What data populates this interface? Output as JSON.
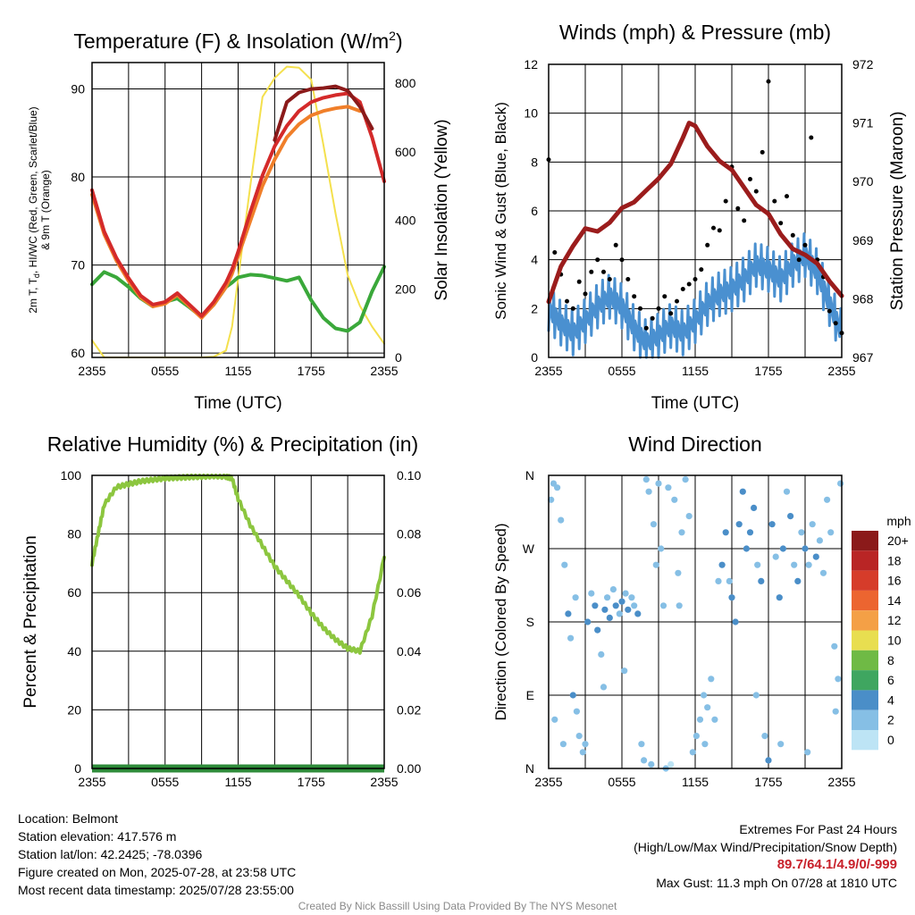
{
  "chart_data": [
    {
      "type": "line",
      "title": "Temperature (F) & Insolation (W/m²)",
      "title_main": "Temperature (F) & Insolation (W/m",
      "title_sup": "2",
      "title_end": ")",
      "xlabel": "Time (UTC)",
      "ylabel_left_lines": [
        "2m T, T",
        "d",
        ", HI/WC (Red, Green, Scarlet/Blue)",
        "& 9m T (Orange)"
      ],
      "ylabel_right": "Solar Insolation (Yellow)",
      "x_ticks": [
        "2355",
        "0555",
        "1155",
        "1755",
        "2355"
      ],
      "y_left_ticks": [
        "60",
        "70",
        "80",
        "90"
      ],
      "y_right_ticks": [
        "0",
        "200",
        "400",
        "600",
        "800"
      ],
      "ylim_left": [
        59.5,
        93
      ],
      "ylim_right": [
        0,
        860
      ],
      "x_hours": [
        0,
        1,
        2,
        3,
        4,
        5,
        6,
        7,
        8,
        9,
        10,
        11,
        11.5,
        12,
        13,
        14,
        15,
        16,
        17,
        18,
        19,
        20,
        21,
        22,
        23,
        24
      ],
      "series": [
        {
          "color": "#8b1a1a",
          "values": [
            null,
            null,
            null,
            null,
            null,
            null,
            null,
            null,
            null,
            null,
            null,
            null,
            null,
            null,
            null,
            null,
            84.2,
            88.5,
            89.6,
            90.0,
            90.1,
            90.3,
            89.8,
            88.0,
            85.5,
            null
          ]
        },
        {
          "color": "#d42a2a",
          "values": [
            78.5,
            73.8,
            70.8,
            68.5,
            66.5,
            65.5,
            65.8,
            66.8,
            65.5,
            64.2,
            65.8,
            68.0,
            69.5,
            71.5,
            76.0,
            80.2,
            83.5,
            85.8,
            87.5,
            88.5,
            89.0,
            89.3,
            89.5,
            88.5,
            84.5,
            79.5
          ]
        },
        {
          "color": "#f07f2a",
          "values": [
            78.0,
            73.5,
            70.5,
            68.2,
            66.3,
            65.3,
            65.6,
            66.6,
            65.3,
            64.0,
            65.5,
            67.5,
            69.0,
            71.0,
            75.0,
            79.0,
            82.0,
            84.5,
            86.0,
            87.0,
            87.5,
            87.8,
            88.0,
            87.5,
            null,
            null
          ]
        },
        {
          "color": "#3aa83a",
          "values": [
            67.8,
            69.2,
            68.6,
            67.5,
            66.2,
            65.3,
            65.8,
            66.2,
            65.2,
            64.1,
            65.5,
            67.5,
            68.0,
            68.6,
            68.9,
            68.8,
            68.5,
            68.2,
            68.6,
            66.0,
            64.0,
            62.8,
            62.5,
            63.5,
            67.0,
            69.8
          ]
        }
      ],
      "insolation": {
        "color": "#f4e04d",
        "values": [
          50,
          0,
          0,
          0,
          0,
          0,
          0,
          0,
          0,
          0,
          2,
          20,
          90,
          230,
          500,
          760,
          815,
          848,
          845,
          810,
          620,
          420,
          240,
          150,
          90,
          40
        ]
      }
    },
    {
      "type": "line",
      "title": "Winds (mph) & Pressure (mb)",
      "xlabel": "Time (UTC)",
      "ylabel_left": "Sonic Wind & Gust (Blue, Black)",
      "ylabel_right": "Station Pressure (Maroon)",
      "x_ticks": [
        "2355",
        "0555",
        "1155",
        "1755",
        "2355"
      ],
      "y_left_ticks": [
        "0",
        "2",
        "4",
        "6",
        "8",
        "10",
        "12"
      ],
      "y_right_ticks": [
        "967",
        "968",
        "969",
        "970",
        "971",
        "972"
      ],
      "ylim_left": [
        0,
        12
      ],
      "ylim_right": [
        967,
        972
      ],
      "wind": {
        "color": "#4a90d0",
        "x_hours": [
          0,
          1,
          2,
          3,
          4,
          5,
          6,
          7,
          8,
          9,
          10,
          11,
          12,
          13,
          14,
          15,
          16,
          17,
          18,
          19,
          20,
          21,
          22,
          23,
          24
        ],
        "values": [
          2.0,
          1.4,
          1.0,
          1.5,
          2.1,
          2.5,
          2.1,
          1.2,
          0.6,
          0.9,
          1.3,
          1.0,
          1.5,
          2.2,
          2.6,
          2.8,
          3.2,
          3.8,
          3.6,
          3.2,
          3.8,
          4.2,
          3.5,
          2.2,
          1.0
        ]
      },
      "gust": {
        "color": "#000000",
        "x_hours": [
          0,
          0.5,
          1,
          1.5,
          2,
          2.5,
          3,
          3.5,
          4,
          4.5,
          5,
          5.5,
          6,
          6.5,
          7,
          7.5,
          8,
          8.5,
          9,
          9.5,
          10,
          10.5,
          11,
          11.5,
          12,
          12.5,
          13,
          13.5,
          14,
          14.5,
          15,
          15.5,
          16,
          16.5,
          17,
          17.5,
          18,
          18.5,
          19,
          19.5,
          20,
          20.5,
          21,
          21.5,
          22,
          22.5,
          23,
          23.5,
          24
        ],
        "values": [
          8.1,
          4.3,
          3.4,
          2.3,
          2.0,
          3.1,
          2.6,
          3.5,
          4.0,
          3.5,
          3.2,
          4.6,
          4.0,
          3.2,
          2.5,
          2.0,
          1.2,
          1.6,
          2.0,
          2.5,
          1.8,
          2.3,
          2.8,
          3.0,
          3.2,
          3.6,
          4.6,
          5.3,
          5.2,
          6.4,
          7.8,
          6.1,
          5.6,
          7.3,
          6.8,
          8.4,
          11.3,
          6.4,
          5.5,
          6.6,
          5.0,
          4.0,
          4.6,
          9.0,
          4.0,
          3.3,
          1.9,
          1.4,
          1.0
        ]
      },
      "pressure": {
        "color": "#9b1c1c",
        "x_hours": [
          0,
          1,
          2,
          3,
          4,
          5,
          6,
          7,
          8,
          9,
          10,
          11,
          11.5,
          12,
          13,
          14,
          15,
          16,
          17,
          18,
          19,
          20,
          21,
          22,
          23,
          24
        ],
        "values": [
          967.95,
          968.55,
          968.9,
          969.2,
          969.15,
          969.3,
          969.55,
          969.65,
          969.85,
          970.05,
          970.3,
          970.75,
          971.0,
          970.95,
          970.6,
          970.35,
          970.2,
          969.9,
          969.6,
          969.45,
          969.1,
          968.85,
          968.75,
          968.6,
          968.3,
          968.05
        ]
      }
    },
    {
      "type": "line",
      "title": "Relative Humidity (%) & Precipitation (in)",
      "ylabel": "Percent & Precipitation",
      "x_ticks": [
        "2355",
        "0555",
        "1155",
        "1755",
        "2355"
      ],
      "y_left_ticks": [
        "0",
        "20",
        "40",
        "60",
        "80",
        "100"
      ],
      "y_right_ticks": [
        "0.00",
        "0.02",
        "0.04",
        "0.06",
        "0.08",
        "0.10"
      ],
      "ylim_left": [
        0,
        100
      ],
      "ylim_right": [
        0,
        0.1
      ],
      "rh": {
        "color": "#8cc63f",
        "x_hours": [
          0,
          0.5,
          1,
          2,
          3,
          4,
          5,
          6,
          7,
          8,
          9,
          10,
          11,
          11.5,
          12,
          13,
          14,
          15,
          16,
          17,
          18,
          19,
          20,
          21,
          22,
          23,
          24
        ],
        "values": [
          70,
          80,
          90,
          96,
          97,
          98,
          98.5,
          99,
          99.2,
          99.4,
          99.6,
          99.8,
          99.6,
          99.0,
          92,
          83,
          76,
          69,
          64,
          59,
          53,
          48,
          44,
          41,
          40,
          52,
          72
        ]
      },
      "precip": {
        "color": "#2e8b3a",
        "values": [
          0,
          0
        ]
      }
    },
    {
      "type": "scatter",
      "title": "Wind Direction",
      "ylabel": "Direction (Colored By Speed)",
      "x_ticks": [
        "2355",
        "0555",
        "1155",
        "1755",
        "2355"
      ],
      "y_ticks": [
        "N",
        "E",
        "S",
        "W",
        "N"
      ],
      "legend_title": "mph",
      "legend_labels": [
        "20+",
        "18",
        "16",
        "14",
        "12",
        "10",
        "8",
        "6",
        "4",
        "2",
        "0"
      ],
      "legend_colors": [
        "#8b1a1a",
        "#b92525",
        "#d63c2a",
        "#ec6530",
        "#f4a046",
        "#e8de50",
        "#6fba45",
        "#3fa660",
        "#4a8ec8",
        "#86bfe5",
        "#bde4f5"
      ],
      "points": [
        {
          "x": 0.2,
          "y": 330,
          "s": 1.5
        },
        {
          "x": 0.4,
          "y": 350,
          "s": 2
        },
        {
          "x": 0.7,
          "y": 345,
          "s": 1.2
        },
        {
          "x": 1.0,
          "y": 305,
          "s": 1.8
        },
        {
          "x": 1.3,
          "y": 250,
          "s": 2.5
        },
        {
          "x": 1.6,
          "y": 190,
          "s": 3
        },
        {
          "x": 1.8,
          "y": 160,
          "s": 2.6
        },
        {
          "x": 2.0,
          "y": 90,
          "s": 3.2
        },
        {
          "x": 2.3,
          "y": 70,
          "s": 2.4
        },
        {
          "x": 2.5,
          "y": 40,
          "s": 1.9
        },
        {
          "x": 2.8,
          "y": 20,
          "s": 2.8
        },
        {
          "x": 3.0,
          "y": 30,
          "s": 2.2
        },
        {
          "x": 3.2,
          "y": 180,
          "s": 3.4
        },
        {
          "x": 3.5,
          "y": 215,
          "s": 2.5
        },
        {
          "x": 3.8,
          "y": 200,
          "s": 3.8
        },
        {
          "x": 4.0,
          "y": 170,
          "s": 3.0
        },
        {
          "x": 4.3,
          "y": 140,
          "s": 2.4
        },
        {
          "x": 4.6,
          "y": 195,
          "s": 3.1
        },
        {
          "x": 4.8,
          "y": 210,
          "s": 2.2
        },
        {
          "x": 5.0,
          "y": 185,
          "s": 3.5
        },
        {
          "x": 5.3,
          "y": 220,
          "s": 2.6
        },
        {
          "x": 5.5,
          "y": 200,
          "s": 3.2
        },
        {
          "x": 5.8,
          "y": 190,
          "s": 2.0
        },
        {
          "x": 6.0,
          "y": 205,
          "s": 3.3
        },
        {
          "x": 6.3,
          "y": 215,
          "s": 2.7
        },
        {
          "x": 6.5,
          "y": 195,
          "s": 3.6
        },
        {
          "x": 6.8,
          "y": 210,
          "s": 2.9
        },
        {
          "x": 7.0,
          "y": 200,
          "s": 2.1
        },
        {
          "x": 7.3,
          "y": 190,
          "s": 3.0
        },
        {
          "x": 7.6,
          "y": 30,
          "s": 1.6
        },
        {
          "x": 7.8,
          "y": 10,
          "s": 1.2
        },
        {
          "x": 8.0,
          "y": 355,
          "s": 1.0
        },
        {
          "x": 8.2,
          "y": 340,
          "s": 1.4
        },
        {
          "x": 8.4,
          "y": 5,
          "s": 1.1
        },
        {
          "x": 8.6,
          "y": 300,
          "s": 1.3
        },
        {
          "x": 8.8,
          "y": 250,
          "s": 1.5
        },
        {
          "x": 9.0,
          "y": 350,
          "s": 1.0
        },
        {
          "x": 9.2,
          "y": 270,
          "s": 1.2
        },
        {
          "x": 9.4,
          "y": 200,
          "s": 1.4
        },
        {
          "x": 9.6,
          "y": 0,
          "s": 1.1
        },
        {
          "x": 9.8,
          "y": 345,
          "s": 1.3
        },
        {
          "x": 10.0,
          "y": 5,
          "s": 0.9
        },
        {
          "x": 10.3,
          "y": 330,
          "s": 1.2
        },
        {
          "x": 10.6,
          "y": 240,
          "s": 1.5
        },
        {
          "x": 10.9,
          "y": 290,
          "s": 1.0
        },
        {
          "x": 11.2,
          "y": 355,
          "s": 1.2
        },
        {
          "x": 11.5,
          "y": 310,
          "s": 1.4
        },
        {
          "x": 11.8,
          "y": 20,
          "s": 1.5
        },
        {
          "x": 12.1,
          "y": 40,
          "s": 1.8
        },
        {
          "x": 12.4,
          "y": 60,
          "s": 2.2
        },
        {
          "x": 12.7,
          "y": 90,
          "s": 2.5
        },
        {
          "x": 13.0,
          "y": 75,
          "s": 2.8
        },
        {
          "x": 13.3,
          "y": 110,
          "s": 2.4
        },
        {
          "x": 13.6,
          "y": 60,
          "s": 2.0
        },
        {
          "x": 13.9,
          "y": 230,
          "s": 2.9
        },
        {
          "x": 14.2,
          "y": 250,
          "s": 3.2
        },
        {
          "x": 14.5,
          "y": 290,
          "s": 3.4
        },
        {
          "x": 14.8,
          "y": 230,
          "s": 2.8
        },
        {
          "x": 15.0,
          "y": 210,
          "s": 3.6
        },
        {
          "x": 15.3,
          "y": 180,
          "s": 4.2
        },
        {
          "x": 15.6,
          "y": 300,
          "s": 3.8
        },
        {
          "x": 15.9,
          "y": 340,
          "s": 4.5
        },
        {
          "x": 16.2,
          "y": 270,
          "s": 3.5
        },
        {
          "x": 16.5,
          "y": 290,
          "s": 4.0
        },
        {
          "x": 16.8,
          "y": 320,
          "s": 3.1
        },
        {
          "x": 17.1,
          "y": 250,
          "s": 2.7
        },
        {
          "x": 17.4,
          "y": 230,
          "s": 3.9
        },
        {
          "x": 17.7,
          "y": 40,
          "s": 2.4
        },
        {
          "x": 18.0,
          "y": 10,
          "s": 4.6
        },
        {
          "x": 18.3,
          "y": 300,
          "s": 3.3
        },
        {
          "x": 18.6,
          "y": 260,
          "s": 2.9
        },
        {
          "x": 18.9,
          "y": 210,
          "s": 3.5
        },
        {
          "x": 19.2,
          "y": 270,
          "s": 3.0
        },
        {
          "x": 19.5,
          "y": 340,
          "s": 2.6
        },
        {
          "x": 19.8,
          "y": 310,
          "s": 3.7
        },
        {
          "x": 20.1,
          "y": 250,
          "s": 2.8
        },
        {
          "x": 20.4,
          "y": 230,
          "s": 3.4
        },
        {
          "x": 20.7,
          "y": 290,
          "s": 2.5
        },
        {
          "x": 21.0,
          "y": 270,
          "s": 3.1
        },
        {
          "x": 21.3,
          "y": 250,
          "s": 2.2
        },
        {
          "x": 21.6,
          "y": 300,
          "s": 2.7
        },
        {
          "x": 21.9,
          "y": 260,
          "s": 3.0
        },
        {
          "x": 22.2,
          "y": 280,
          "s": 2.1
        },
        {
          "x": 22.5,
          "y": 240,
          "s": 1.9
        },
        {
          "x": 22.8,
          "y": 330,
          "s": 1.6
        },
        {
          "x": 23.1,
          "y": 290,
          "s": 2.4
        },
        {
          "x": 23.4,
          "y": 150,
          "s": 1.3
        },
        {
          "x": 23.7,
          "y": 110,
          "s": 1.1
        },
        {
          "x": 23.9,
          "y": 350,
          "s": 1.0
        },
        {
          "x": 0.5,
          "y": 60,
          "s": 2.3
        },
        {
          "x": 1.2,
          "y": 30,
          "s": 2.0
        },
        {
          "x": 2.2,
          "y": 210,
          "s": 2.8
        },
        {
          "x": 4.5,
          "y": 100,
          "s": 1.6
        },
        {
          "x": 6.2,
          "y": 120,
          "s": 1.4
        },
        {
          "x": 12.8,
          "y": 30,
          "s": 2.0
        },
        {
          "x": 19.0,
          "y": 30,
          "s": 2.4
        },
        {
          "x": 21.2,
          "y": 20,
          "s": 1.8
        },
        {
          "x": 23.5,
          "y": 70,
          "s": 1.2
        },
        {
          "x": 17.0,
          "y": 90,
          "s": 2.2
        },
        {
          "x": 10.7,
          "y": 200,
          "s": 1.2
        }
      ]
    }
  ],
  "info_left": {
    "location": "Location: Belmont",
    "elevation": "Station elevation: 417.576 m",
    "latlon": "Station lat/lon: 42.2425; -78.0396",
    "created": "Figure created on Mon, 2025-07-28, at 23:58 UTC",
    "recent": "Most recent data timestamp: 2025/07/28 23:55:00"
  },
  "info_right": {
    "title": "Extremes For Past 24 Hours",
    "subtitle": "(High/Low/Max Wind/Precipitation/Snow Depth)",
    "values": "89.7/64.1/4.9/0/-999",
    "max_gust": "Max Gust: 11.3 mph On 07/28 at 1810 UTC"
  },
  "credit": "Created By Nick Bassill Using Data Provided By The NYS Mesonet"
}
